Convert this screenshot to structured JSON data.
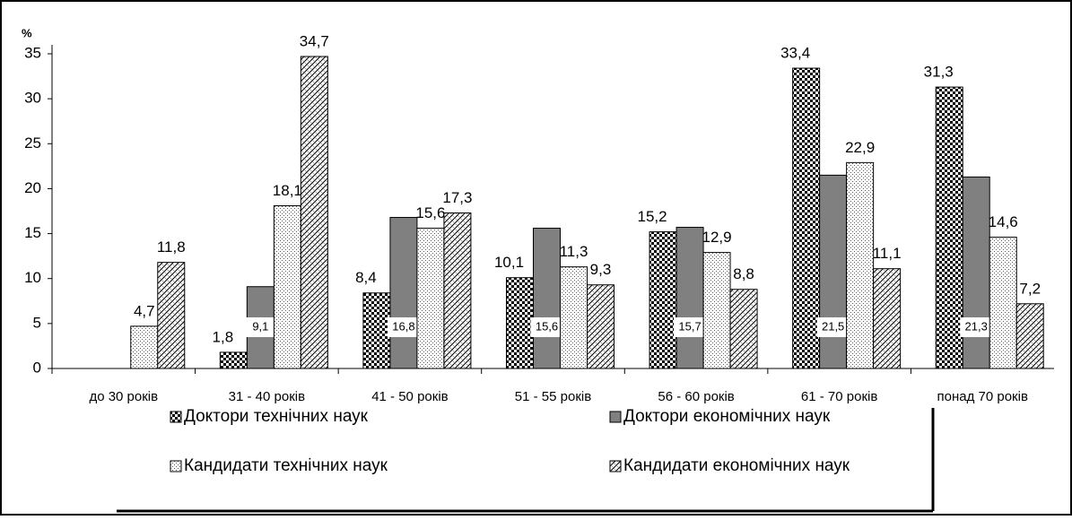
{
  "chart_data": {
    "type": "bar",
    "ylabel": "%",
    "categories": [
      "до 30 років",
      "31 - 40 років",
      "41 - 50 років",
      "51 - 55 років",
      "56 - 60 років",
      "61 - 70 років",
      "понад 70 років"
    ],
    "series": [
      {
        "name": "Доктори технічних наук",
        "values": [
          null,
          1.8,
          8.4,
          10.1,
          15.2,
          33.4,
          31.3
        ],
        "value_labels": [
          null,
          "1,8",
          "8,4",
          "10,1",
          "15,2",
          "33,4",
          "31,3"
        ]
      },
      {
        "name": "Доктори економічних наук",
        "values": [
          null,
          9.1,
          16.8,
          15.6,
          15.7,
          21.5,
          21.3
        ],
        "value_labels": [
          null,
          "9,1",
          "16,8",
          "15,6",
          "15,7",
          "21,5",
          "21,3"
        ]
      },
      {
        "name": "Кандидати технічних наук",
        "values": [
          4.7,
          18.1,
          15.6,
          11.3,
          12.9,
          22.9,
          14.6
        ],
        "value_labels": [
          "4,7",
          "18,1",
          "15,6",
          "11,3",
          "12,9",
          "22,9",
          "14,6"
        ]
      },
      {
        "name": "Кандидати економічних наук",
        "values": [
          11.8,
          34.7,
          17.3,
          9.3,
          8.8,
          11.1,
          7.2
        ],
        "value_labels": [
          "11,8",
          "34,7",
          "17,3",
          "9,3",
          "8,8",
          "11,1",
          "7,2"
        ]
      }
    ],
    "ylim": [
      0,
      35
    ],
    "yticks": [
      0,
      5,
      10,
      15,
      20,
      25,
      30,
      35
    ],
    "grid": false
  }
}
